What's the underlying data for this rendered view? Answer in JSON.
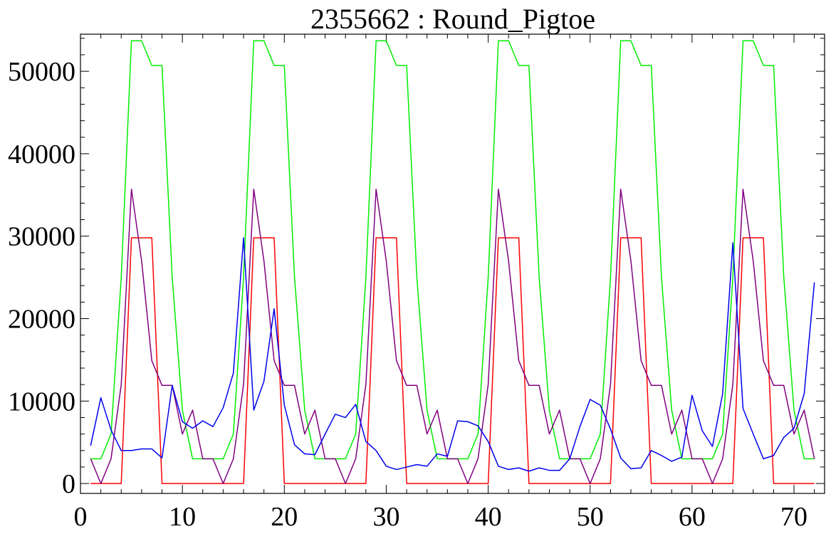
{
  "chart_data": {
    "type": "line",
    "title": "2355662 : Round_Pigtoe",
    "xlabel": "",
    "ylabel": "",
    "xlim": [
      0,
      73
    ],
    "ylim": [
      -1200,
      54500
    ],
    "x_ticks": [
      0,
      10,
      20,
      30,
      40,
      50,
      60,
      70
    ],
    "x_tick_labels": [
      "0",
      "10",
      "20",
      "30",
      "40",
      "50",
      "60",
      "70"
    ],
    "y_ticks": [
      0,
      10000,
      20000,
      30000,
      40000,
      50000
    ],
    "y_tick_labels": [
      "0",
      "10000",
      "20000",
      "30000",
      "40000",
      "50000"
    ],
    "grid": false,
    "legend": "none",
    "series": [
      {
        "color": "#00ee00",
        "x": [
          1,
          2,
          3,
          4,
          5,
          6,
          7,
          8,
          9,
          10,
          11,
          12,
          13,
          14,
          15,
          16,
          17,
          18,
          19,
          20,
          21,
          22,
          23,
          24,
          25,
          26,
          27,
          28,
          29,
          30,
          31,
          32,
          33,
          34,
          35,
          36,
          37,
          38,
          39,
          40,
          41,
          42,
          43,
          44,
          45,
          46,
          47,
          48,
          49,
          50,
          51,
          52,
          53,
          54,
          55,
          56,
          57,
          58,
          59,
          60,
          61,
          62,
          63,
          64,
          65,
          66,
          67,
          68,
          69,
          70,
          71,
          72
        ],
        "y": [
          3000,
          3000,
          6000,
          25000,
          53700,
          53700,
          50700,
          50700,
          25000,
          8900,
          3000,
          3000,
          3000,
          3000,
          6000,
          25000,
          53700,
          53700,
          50700,
          50700,
          25000,
          8900,
          3000,
          3000,
          3000,
          3000,
          6000,
          25000,
          53700,
          53700,
          50700,
          50700,
          25000,
          8900,
          3000,
          3000,
          3000,
          3000,
          6000,
          25000,
          53700,
          53700,
          50700,
          50700,
          25000,
          8900,
          3000,
          3000,
          3000,
          3000,
          6000,
          25000,
          53700,
          53700,
          50700,
          50700,
          25000,
          8900,
          3000,
          3000,
          3000,
          3000,
          6000,
          25000,
          53700,
          53700,
          50700,
          50700,
          25000,
          8900,
          3000,
          3000
        ]
      },
      {
        "color": "#ff0000",
        "x": [
          1,
          2,
          3,
          4,
          5,
          6,
          7,
          8,
          9,
          10,
          11,
          12,
          13,
          14,
          15,
          16,
          17,
          18,
          19,
          20,
          21,
          22,
          23,
          24,
          25,
          26,
          27,
          28,
          29,
          30,
          31,
          32,
          33,
          34,
          35,
          36,
          37,
          38,
          39,
          40,
          41,
          42,
          43,
          44,
          45,
          46,
          47,
          48,
          49,
          50,
          51,
          52,
          53,
          54,
          55,
          56,
          57,
          58,
          59,
          60,
          61,
          62,
          63,
          64,
          65,
          66,
          67,
          68,
          69,
          70,
          71,
          72
        ],
        "y": [
          0,
          0,
          0,
          0,
          29800,
          29800,
          29800,
          0,
          0,
          0,
          0,
          0,
          0,
          0,
          0,
          0,
          29800,
          29800,
          29800,
          0,
          0,
          0,
          0,
          0,
          0,
          0,
          0,
          0,
          29800,
          29800,
          29800,
          0,
          0,
          0,
          0,
          0,
          0,
          0,
          0,
          0,
          29800,
          29800,
          29800,
          0,
          0,
          0,
          0,
          0,
          0,
          0,
          0,
          0,
          29800,
          29800,
          29800,
          0,
          0,
          0,
          0,
          0,
          0,
          0,
          0,
          0,
          29800,
          29800,
          29800,
          0,
          0,
          0,
          0,
          0
        ]
      },
      {
        "color": "#800080",
        "x": [
          1,
          2,
          3,
          4,
          5,
          6,
          7,
          8,
          9,
          10,
          11,
          12,
          13,
          14,
          15,
          16,
          17,
          18,
          19,
          20,
          21,
          22,
          23,
          24,
          25,
          26,
          27,
          28,
          29,
          30,
          31,
          32,
          33,
          34,
          35,
          36,
          37,
          38,
          39,
          40,
          41,
          42,
          43,
          44,
          45,
          46,
          47,
          48,
          49,
          50,
          51,
          52,
          53,
          54,
          55,
          56,
          57,
          58,
          59,
          60,
          61,
          62,
          63,
          64,
          65,
          66,
          67,
          68,
          69,
          70,
          71,
          72
        ],
        "y": [
          3000,
          0,
          3000,
          12000,
          35700,
          27000,
          14900,
          11900,
          11900,
          6000,
          8900,
          3000,
          3000,
          0,
          3000,
          12000,
          35700,
          27000,
          14900,
          11900,
          11900,
          6000,
          8900,
          3000,
          3000,
          0,
          3000,
          12000,
          35700,
          27000,
          14900,
          11900,
          11900,
          6000,
          8900,
          3000,
          3000,
          0,
          3000,
          12000,
          35700,
          27000,
          14900,
          11900,
          11900,
          6000,
          8900,
          3000,
          3000,
          0,
          3000,
          12000,
          35700,
          27000,
          14900,
          11900,
          11900,
          6000,
          8900,
          3000,
          3000,
          0,
          3000,
          12000,
          35700,
          27000,
          14900,
          11900,
          11900,
          6000,
          8900,
          3000
        ]
      },
      {
        "color": "#0000ee",
        "x": [
          1,
          2,
          3,
          4,
          5,
          6,
          7,
          8,
          9,
          10,
          11,
          12,
          13,
          14,
          15,
          16,
          17,
          18,
          19,
          20,
          21,
          22,
          23,
          24,
          25,
          26,
          27,
          28,
          29,
          30,
          31,
          32,
          33,
          34,
          35,
          36,
          37,
          38,
          39,
          40,
          41,
          42,
          43,
          44,
          45,
          46,
          47,
          48,
          49,
          50,
          51,
          52,
          53,
          54,
          55,
          56,
          57,
          58,
          59,
          60,
          61,
          62,
          63,
          64,
          65,
          66,
          67,
          68,
          69,
          70,
          71,
          72
        ],
        "y": [
          4600,
          10400,
          6500,
          4000,
          4000,
          4200,
          4200,
          3100,
          11900,
          7500,
          6700,
          7600,
          6900,
          9200,
          13400,
          29800,
          8900,
          12400,
          21200,
          9500,
          4700,
          3600,
          3500,
          6000,
          8400,
          8000,
          9600,
          5100,
          4000,
          2100,
          1700,
          2000,
          2300,
          2100,
          3600,
          3300,
          7600,
          7500,
          7000,
          5100,
          2100,
          1700,
          1900,
          1500,
          1900,
          1600,
          1600,
          3000,
          6900,
          10200,
          9500,
          6600,
          3100,
          1800,
          1900,
          4000,
          3400,
          2700,
          3200,
          10700,
          6400,
          4500,
          10900,
          29200,
          9100,
          6000,
          3000,
          3400,
          5600,
          6700,
          10900,
          24400
        ]
      }
    ]
  }
}
